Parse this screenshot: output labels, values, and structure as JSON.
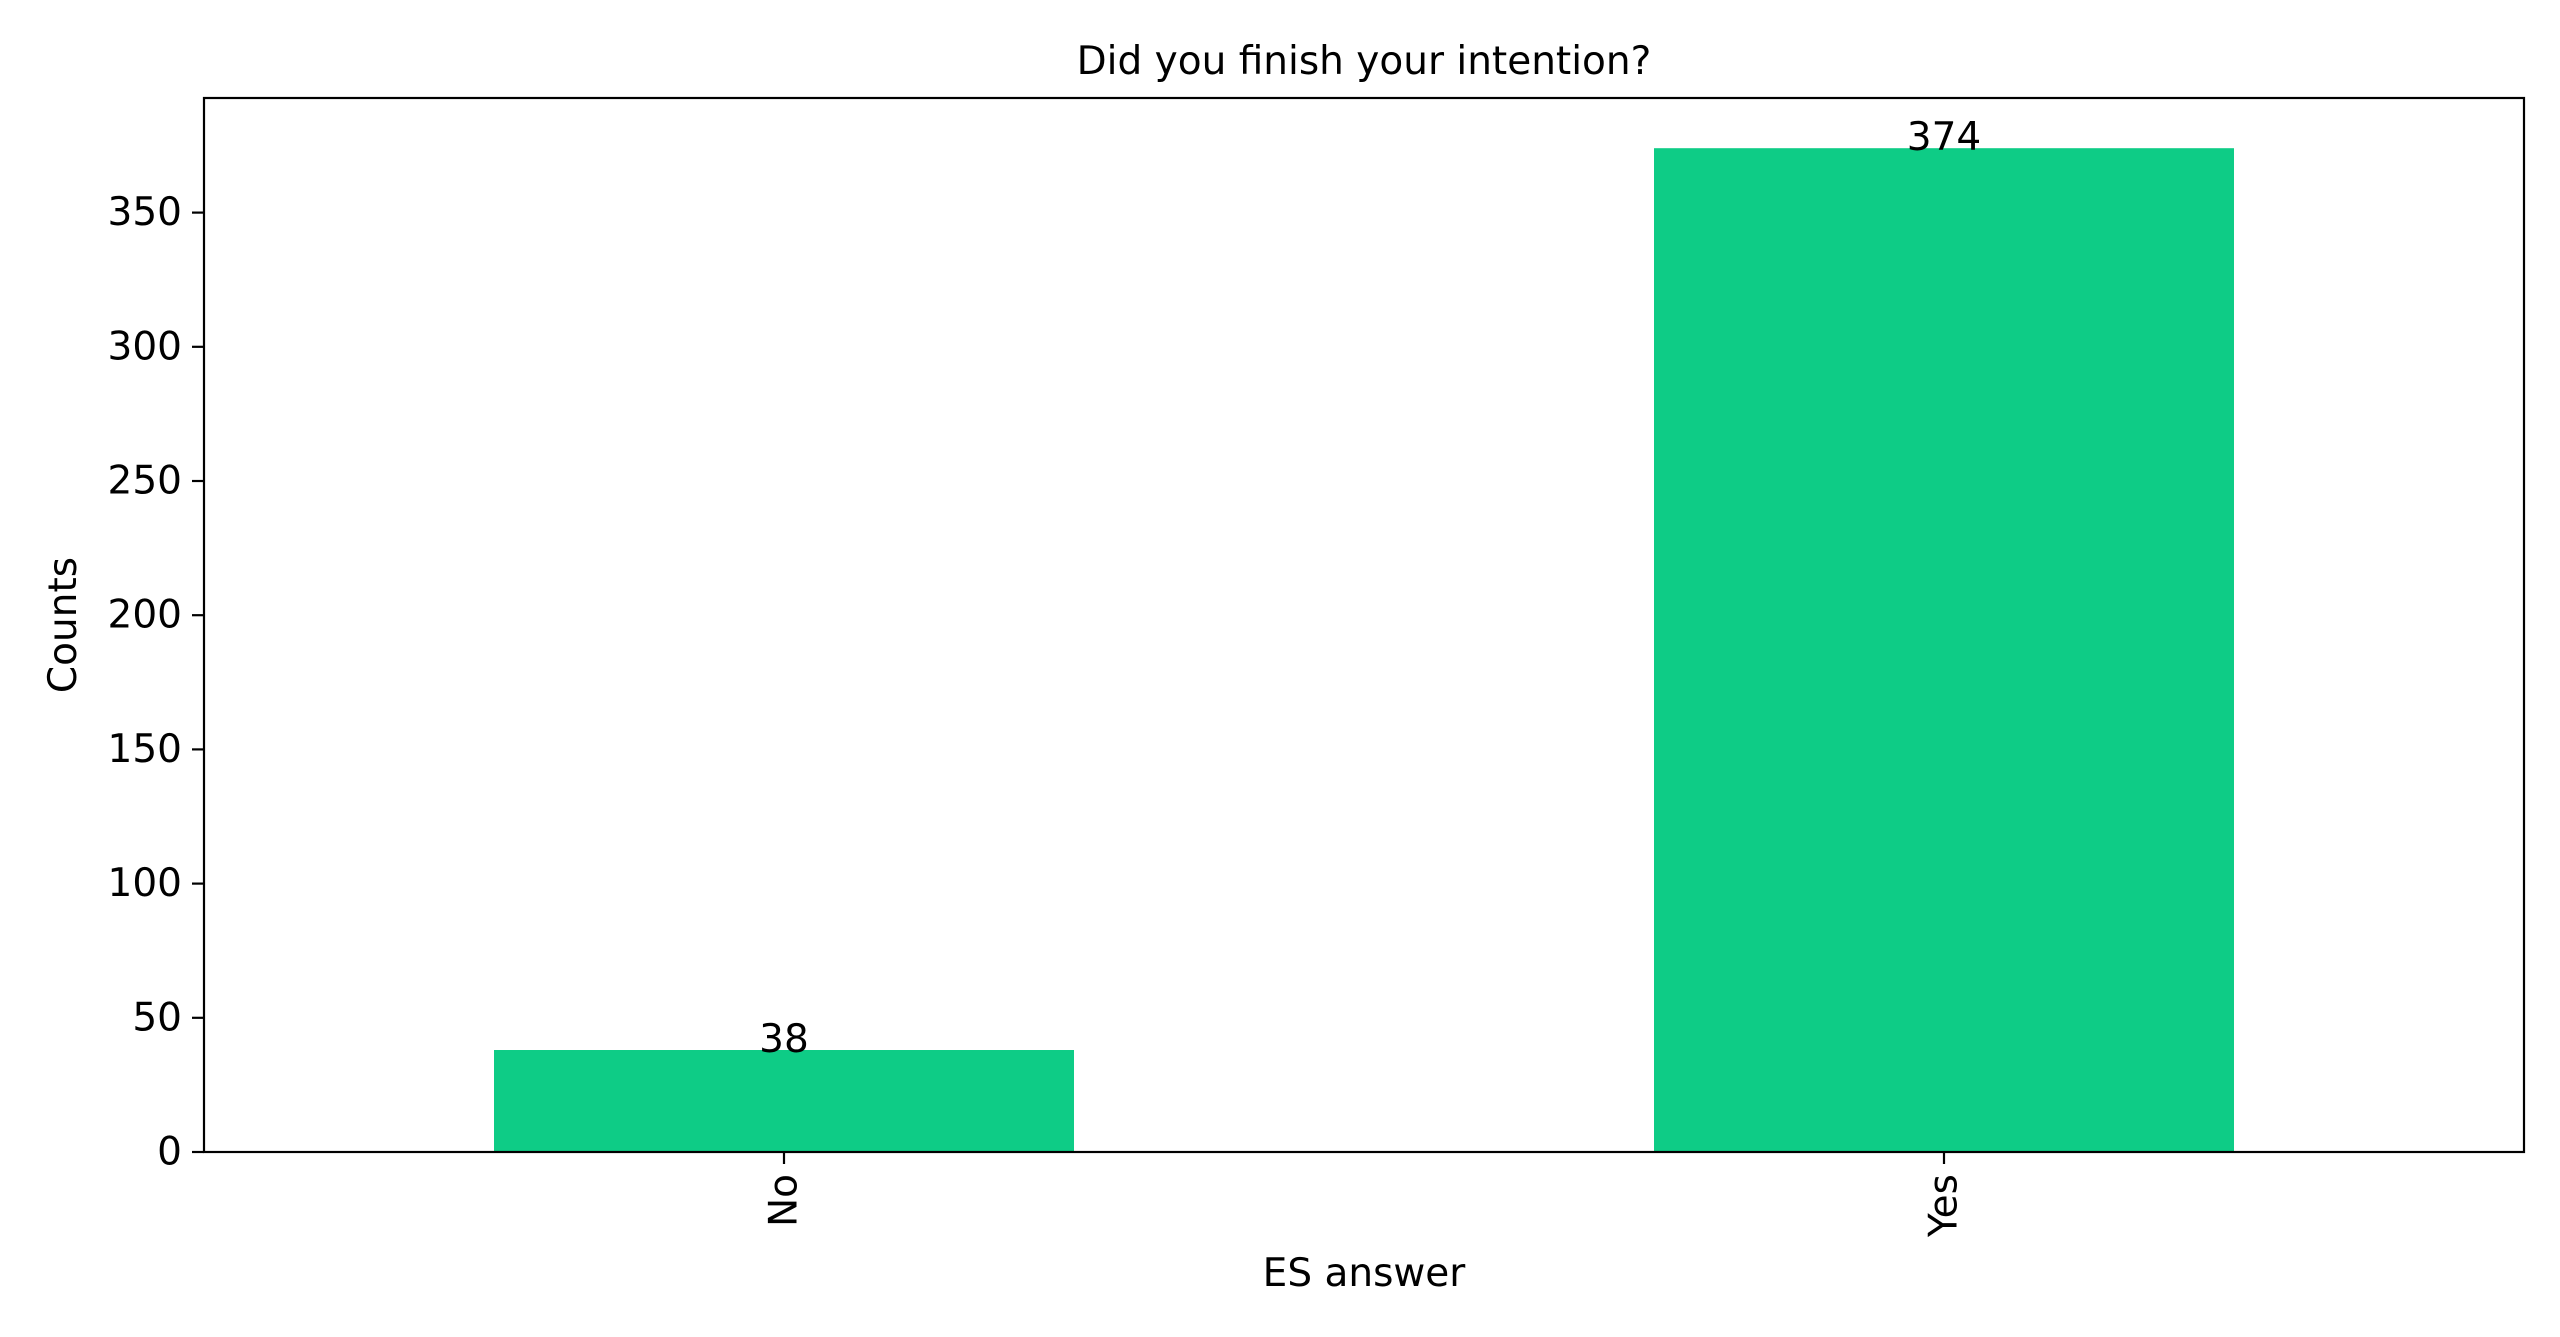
{
  "chart_data": {
    "type": "bar",
    "title": "Did you finish your intention?",
    "xlabel": "ES answer",
    "ylabel": "Counts",
    "categories": [
      "No",
      "Yes"
    ],
    "values": [
      38,
      374
    ],
    "data_labels": [
      "38",
      "374"
    ],
    "ylim": [
      0,
      392.7
    ],
    "yticks": [
      0,
      50,
      100,
      150,
      200,
      250,
      300,
      350
    ],
    "ytick_labels": [
      "0",
      "50",
      "100",
      "150",
      "200",
      "250",
      "300",
      "350"
    ],
    "x_tick_rotation": "vertical",
    "grid": false,
    "legend": "none",
    "bar_color": "#0ecc86"
  }
}
